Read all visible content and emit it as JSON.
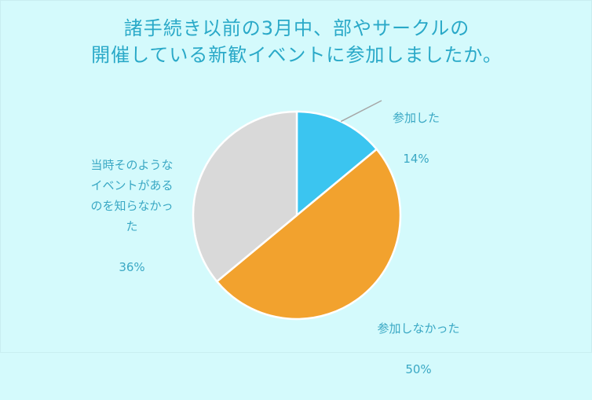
{
  "chart_data": {
    "type": "pie",
    "title": "諸手続き以前の3月中、部やサークルの\n開催している新歓イベントに参加しましたか。",
    "slices": [
      {
        "label": "参加した",
        "value": 14,
        "display": "14%",
        "color": "#3bc5f0"
      },
      {
        "label": "参加しなかった",
        "value": 50,
        "display": "50%",
        "color": "#f2a22e"
      },
      {
        "label": "当時そのような\nイベントがある\nのを知らなかっ\nた",
        "value": 36,
        "display": "36%",
        "color": "#d9d9d9"
      }
    ]
  }
}
